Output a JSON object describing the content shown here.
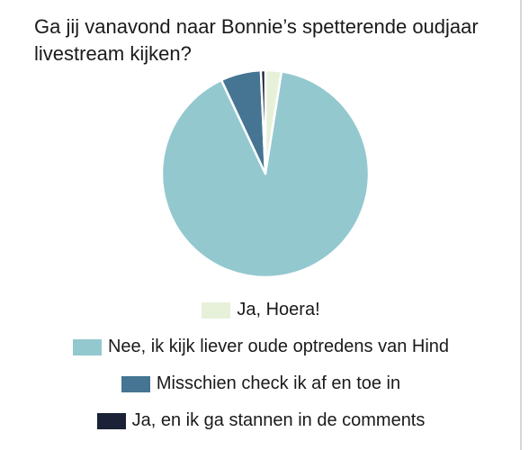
{
  "poll": {
    "question": "Ga jij vanavond naar Bonnie’s spetterende oudjaar livestream kijken?"
  },
  "chart_data": {
    "type": "pie",
    "title": "",
    "legend_position": "bottom",
    "slices": [
      {
        "label": "Ja, Hoera!",
        "value": 2.5,
        "color": "#e7f1d9"
      },
      {
        "label": "Nee, ik kijk liever oude optredens van Hind",
        "value": 90.5,
        "color": "#93c8cf"
      },
      {
        "label": "Misschien check ik af en toe in",
        "value": 6.3,
        "color": "#457592"
      },
      {
        "label": "Ja, en ik ga stannen in de comments",
        "value": 0.7,
        "color": "#1b2237"
      }
    ]
  }
}
